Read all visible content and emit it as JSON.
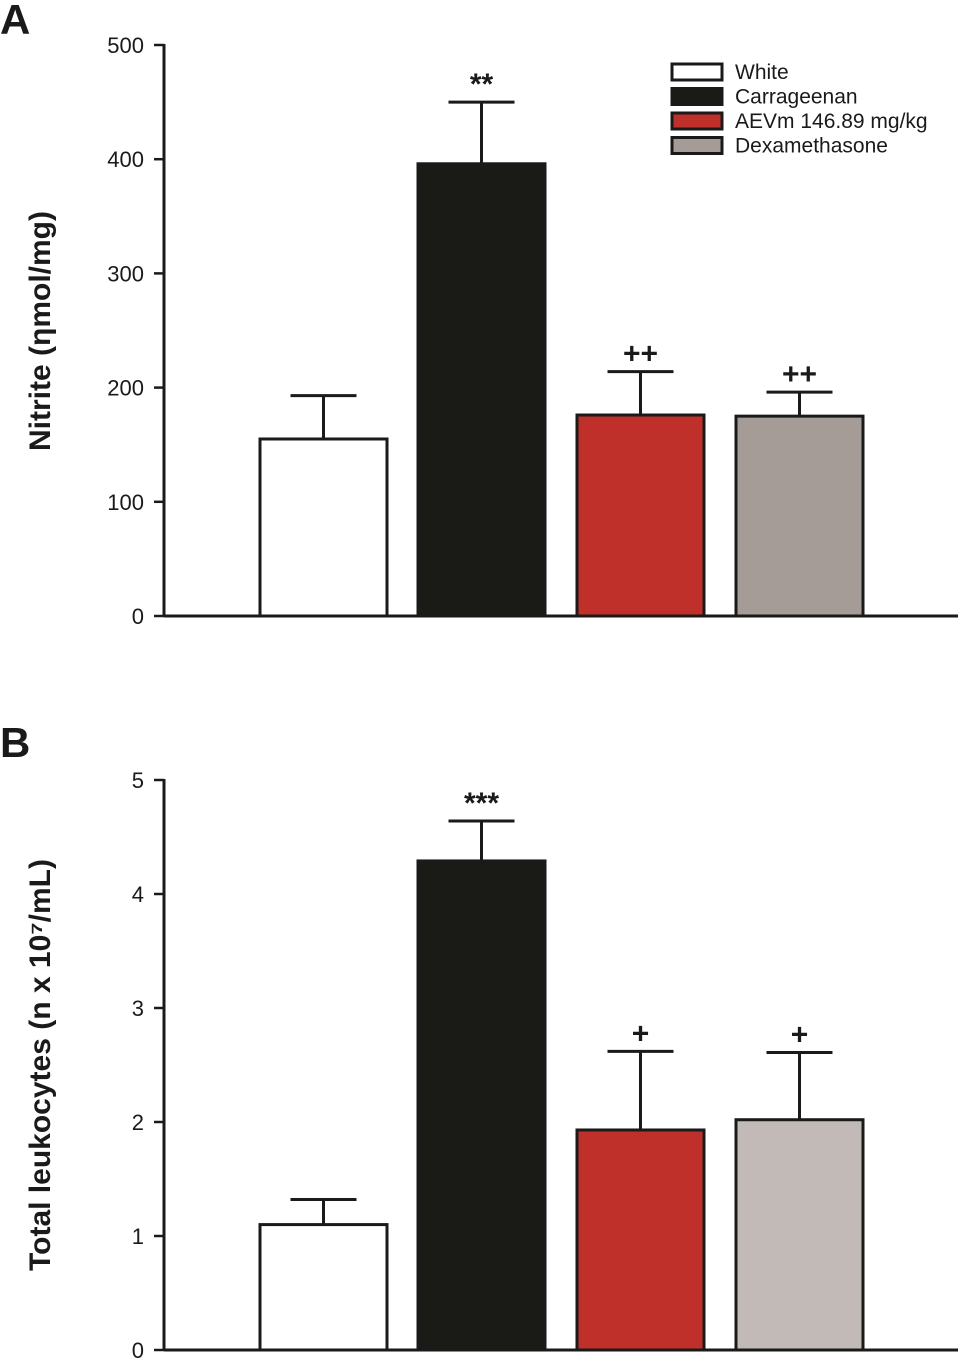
{
  "chart_data": [
    {
      "panel": "A",
      "type": "bar",
      "ylabel": "Nitrite (ηmol/mg)",
      "ylim": [
        0,
        500
      ],
      "yticks": [
        0,
        100,
        200,
        300,
        400,
        500
      ],
      "categories": [
        "White",
        "Carrageenan",
        "AEVm 146.89 mg/kg",
        "Dexamethasone"
      ],
      "values": [
        155,
        396,
        176,
        175
      ],
      "errors": [
        38,
        54,
        38,
        21
      ],
      "significance": [
        "",
        "**",
        "++",
        "++"
      ],
      "colors": [
        "#ffffff",
        "#1a1a16",
        "#c0302b",
        "#a59c97"
      ],
      "legend": [
        "White",
        "Carrageenan",
        "AEVm 146.89 mg/kg",
        "Dexamethasone"
      ],
      "legend_position": "top-right"
    },
    {
      "panel": "B",
      "type": "bar",
      "ylabel": "Total leukocytes (n x 10⁷/mL)",
      "ylim": [
        0,
        5
      ],
      "yticks": [
        0,
        1,
        2,
        3,
        4,
        5
      ],
      "categories": [
        "White",
        "Carrageenan",
        "AEVm 146.89 mg/kg",
        "Dexamethasone"
      ],
      "values": [
        1.1,
        4.29,
        1.93,
        2.02
      ],
      "errors": [
        0.22,
        0.35,
        0.69,
        0.59
      ],
      "significance": [
        "",
        "***",
        "+",
        "+"
      ],
      "colors": [
        "#ffffff",
        "#1a1a16",
        "#c0302b",
        "#c2bab6"
      ]
    }
  ]
}
